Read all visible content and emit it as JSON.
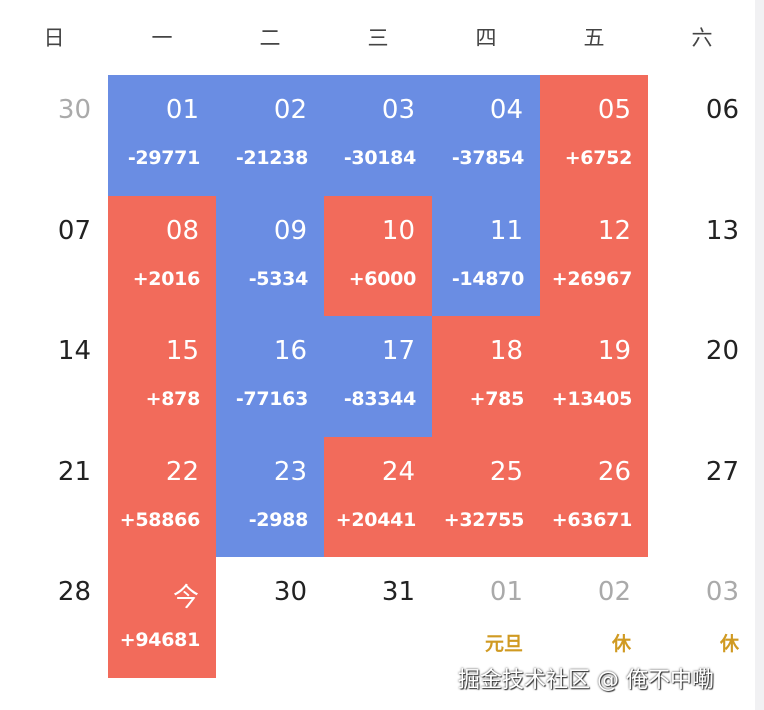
{
  "colors": {
    "gain": "#f26b5b",
    "loss": "#6a8de3",
    "holiday": "#d09a22",
    "muted": "#aaaaaa"
  },
  "weekdays": [
    "日",
    "一",
    "二",
    "三",
    "四",
    "五",
    "六"
  ],
  "rows": [
    [
      {
        "day": "30",
        "muted": true
      },
      {
        "day": "01",
        "value": "-29771",
        "c": "blue"
      },
      {
        "day": "02",
        "value": "-21238",
        "c": "blue"
      },
      {
        "day": "03",
        "value": "-30184",
        "c": "blue"
      },
      {
        "day": "04",
        "value": "-37854",
        "c": "blue"
      },
      {
        "day": "05",
        "value": "+6752",
        "c": "red"
      },
      {
        "day": "06"
      }
    ],
    [
      {
        "day": "07"
      },
      {
        "day": "08",
        "value": "+2016",
        "c": "red"
      },
      {
        "day": "09",
        "value": "-5334",
        "c": "blue"
      },
      {
        "day": "10",
        "value": "+6000",
        "c": "red"
      },
      {
        "day": "11",
        "value": "-14870",
        "c": "blue"
      },
      {
        "day": "12",
        "value": "+26967",
        "c": "red"
      },
      {
        "day": "13"
      }
    ],
    [
      {
        "day": "14"
      },
      {
        "day": "15",
        "value": "+878",
        "c": "red"
      },
      {
        "day": "16",
        "value": "-77163",
        "c": "blue"
      },
      {
        "day": "17",
        "value": "-83344",
        "c": "blue"
      },
      {
        "day": "18",
        "value": "+785",
        "c": "red"
      },
      {
        "day": "19",
        "value": "+13405",
        "c": "red"
      },
      {
        "day": "20"
      }
    ],
    [
      {
        "day": "21"
      },
      {
        "day": "22",
        "value": "+58866",
        "c": "red"
      },
      {
        "day": "23",
        "value": "-2988",
        "c": "blue"
      },
      {
        "day": "24",
        "value": "+20441",
        "c": "red"
      },
      {
        "day": "25",
        "value": "+32755",
        "c": "red"
      },
      {
        "day": "26",
        "value": "+63671",
        "c": "red"
      },
      {
        "day": "27"
      }
    ],
    [
      {
        "day": "28"
      },
      {
        "day": "今",
        "value": "+94681",
        "c": "red"
      },
      {
        "day": "30"
      },
      {
        "day": "31"
      },
      {
        "day": "01",
        "muted": true,
        "note": "元旦"
      },
      {
        "day": "02",
        "muted": true,
        "note": "休"
      },
      {
        "day": "03",
        "muted": true,
        "note": "休"
      }
    ]
  ],
  "watermark": "掘金技术社区 @ 俺不中嘞"
}
